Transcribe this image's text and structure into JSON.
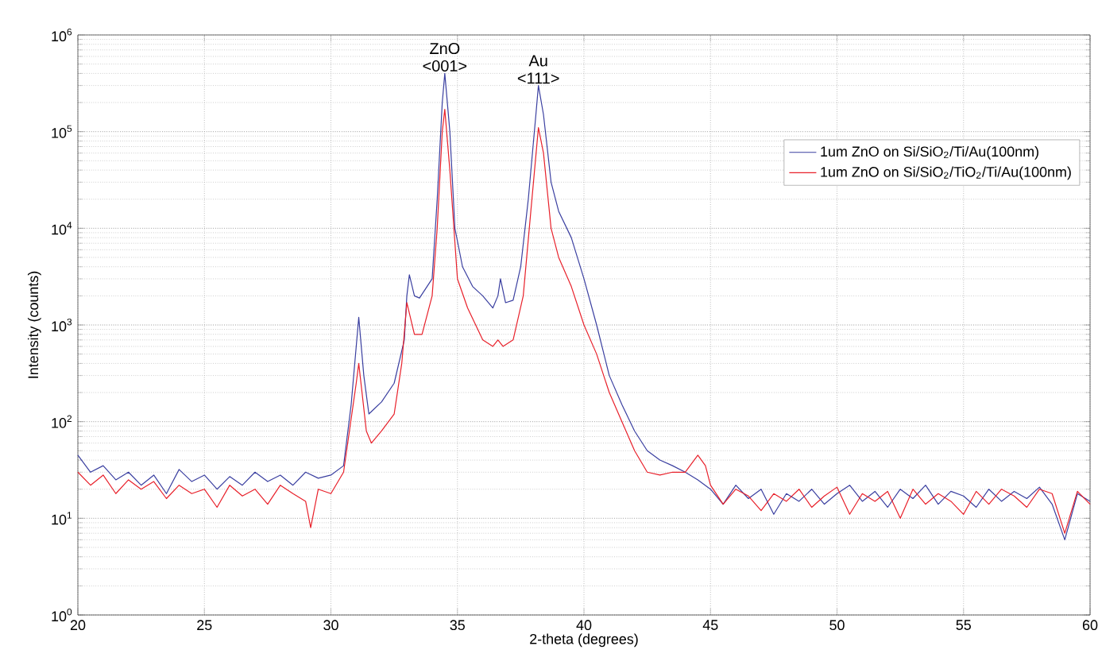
{
  "chart_data": {
    "type": "line",
    "xlabel": "2-theta (degrees)",
    "ylabel": "Intensity (counts)",
    "xlim": [
      20,
      60
    ],
    "xticks": [
      20,
      25,
      30,
      35,
      40,
      45,
      50,
      55,
      60
    ],
    "ylim": [
      1,
      1000000
    ],
    "log": true,
    "yticks": [
      {
        "value": 1,
        "label": "10$^{0}$"
      },
      {
        "value": 10,
        "label": "10$^{1}$"
      },
      {
        "value": 100,
        "label": "10$^{2}$"
      },
      {
        "value": 1000,
        "label": "10$^{3}$"
      },
      {
        "value": 10000,
        "label": "10$^{4}$"
      },
      {
        "value": 100000,
        "label": "10$^{5}$"
      },
      {
        "value": 1000000,
        "label": "10$^{6}$"
      }
    ],
    "grid": true,
    "legend": "right",
    "line_style": "solid",
    "marker": "none",
    "annotations": [
      {
        "text": "ZnO <001>",
        "x": 34.5,
        "y": 400000
      },
      {
        "text": "Au <111>",
        "x": 38.2,
        "y": 300000
      }
    ],
    "series": [
      {
        "name": "1um ZnO on Si/SiO$_{2}$/Ti/Au(100nm)",
        "color": "#3a3fa0",
        "x": [
          20,
          20.5,
          21,
          21.5,
          22,
          22.5,
          23,
          23.5,
          24,
          24.5,
          25,
          25.5,
          26,
          26.5,
          27,
          27.5,
          28,
          28.5,
          29,
          29.5,
          30,
          30.5,
          30.8,
          31.0,
          31.1,
          31.3,
          31.5,
          32,
          32.5,
          32.9,
          33.0,
          33.1,
          33.3,
          33.5,
          34,
          34.2,
          34.4,
          34.5,
          34.7,
          34.9,
          35.2,
          35.6,
          36,
          36.4,
          36.6,
          36.7,
          36.9,
          37.2,
          37.5,
          37.8,
          38.1,
          38.2,
          38.4,
          38.7,
          39,
          39.5,
          40,
          40.5,
          41,
          41.5,
          42,
          42.5,
          43,
          43.5,
          44,
          44.5,
          45,
          45.5,
          46,
          46.5,
          47,
          47.5,
          48,
          48.5,
          49,
          49.5,
          50,
          50.5,
          51,
          51.5,
          52,
          52.5,
          53,
          53.5,
          54,
          54.5,
          55,
          55.5,
          56,
          56.5,
          57,
          57.5,
          58,
          58.5,
          59,
          59.5,
          60
        ],
        "values": [
          45,
          30,
          35,
          25,
          30,
          22,
          28,
          18,
          32,
          24,
          28,
          20,
          27,
          22,
          30,
          24,
          28,
          22,
          30,
          26,
          28,
          35,
          150,
          600,
          1200,
          300,
          120,
          160,
          250,
          700,
          2000,
          3300,
          2000,
          1900,
          3000,
          20000,
          200000,
          400000,
          100000,
          10000,
          4000,
          2500,
          2000,
          1500,
          2000,
          3000,
          1700,
          1800,
          4000,
          20000,
          150000,
          300000,
          150000,
          30000,
          15000,
          8000,
          3000,
          1000,
          300,
          150,
          80,
          50,
          40,
          35,
          30,
          25,
          20,
          14,
          22,
          16,
          20,
          11,
          18,
          15,
          20,
          14,
          18,
          22,
          15,
          19,
          13,
          20,
          16,
          22,
          14,
          19,
          17,
          13,
          20,
          15,
          19,
          16,
          21,
          14,
          6,
          18,
          15
        ]
      },
      {
        "name": "1um ZnO on Si/SiO$_{2}$/TiO$_{2}$/Ti/Au(100nm)",
        "color": "#e8202a",
        "x": [
          20,
          20.5,
          21,
          21.5,
          22,
          22.5,
          23,
          23.5,
          24,
          24.5,
          25,
          25.5,
          26,
          26.5,
          27,
          27.5,
          28,
          28.5,
          29,
          29.2,
          29.5,
          30,
          30.5,
          31.0,
          31.1,
          31.4,
          31.6,
          32,
          32.5,
          32.8,
          33.0,
          33.3,
          33.6,
          34,
          34.2,
          34.4,
          34.5,
          34.7,
          35,
          35.4,
          36,
          36.4,
          36.6,
          36.8,
          37.2,
          37.6,
          37.9,
          38.2,
          38.4,
          38.7,
          39,
          39.5,
          40,
          40.5,
          41,
          41.5,
          42,
          42.5,
          43,
          43.5,
          44,
          44.5,
          44.8,
          45,
          45.5,
          46,
          46.5,
          47,
          47.5,
          48,
          48.5,
          49,
          49.5,
          50,
          50.5,
          51,
          51.5,
          52,
          52.5,
          53,
          53.5,
          54,
          54.5,
          55,
          55.5,
          56,
          56.5,
          57,
          57.5,
          58,
          58.5,
          59,
          59.5,
          60
        ],
        "values": [
          30,
          22,
          28,
          18,
          25,
          20,
          24,
          16,
          22,
          18,
          20,
          13,
          22,
          17,
          20,
          14,
          22,
          18,
          15,
          8,
          20,
          18,
          30,
          250,
          400,
          80,
          60,
          80,
          120,
          400,
          1700,
          800,
          800,
          2000,
          10000,
          100000,
          170000,
          40000,
          3000,
          1500,
          700,
          600,
          700,
          600,
          700,
          2000,
          15000,
          110000,
          60000,
          10000,
          5000,
          2500,
          1000,
          500,
          200,
          100,
          50,
          30,
          28,
          30,
          30,
          45,
          35,
          22,
          14,
          20,
          17,
          12,
          18,
          15,
          20,
          13,
          17,
          21,
          11,
          18,
          15,
          19,
          10,
          20,
          14,
          18,
          15,
          11,
          19,
          14,
          20,
          17,
          13,
          20,
          18,
          7,
          19,
          14
        ]
      }
    ]
  }
}
